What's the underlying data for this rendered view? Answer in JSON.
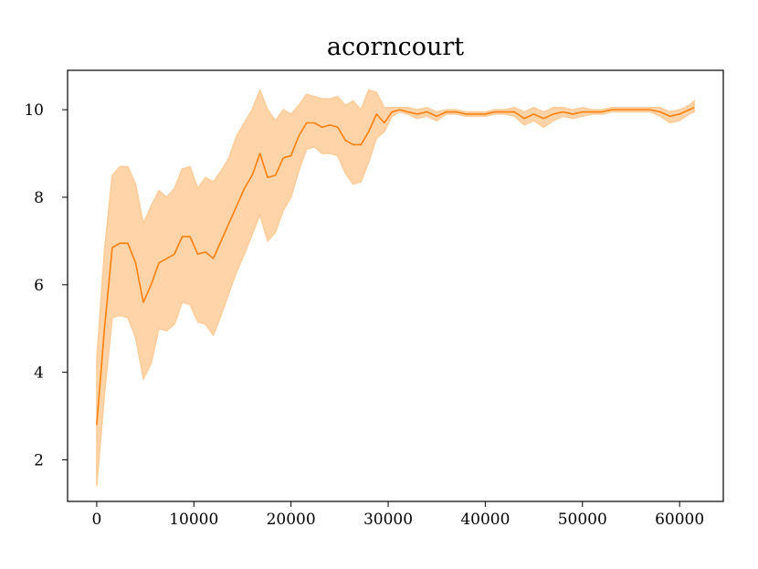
{
  "chart_data": {
    "type": "line",
    "title": "acorncourt",
    "xlabel": "",
    "ylabel": "",
    "xlim": [
      -3000,
      64500
    ],
    "ylim": [
      1.05,
      10.9
    ],
    "xticks": [
      0,
      10000,
      20000,
      30000,
      40000,
      50000,
      60000
    ],
    "yticks": [
      2,
      4,
      6,
      8,
      10
    ],
    "grid": false,
    "legend": "none",
    "colors": {
      "line": "#ff7f0e",
      "band": "#ffcc99"
    },
    "series": [
      {
        "x": [
          0,
          800,
          1600,
          2400,
          3200,
          4000,
          4800,
          5600,
          6400,
          7200,
          8000,
          8800,
          9600,
          10400,
          11200,
          12000,
          12800,
          13600,
          14400,
          15200,
          16000,
          16800,
          17600,
          18400,
          19200,
          20000,
          20800,
          21600,
          22400,
          23200,
          24000,
          24800,
          25600,
          26400,
          27200,
          28000,
          28800,
          29600,
          30400,
          31200,
          32000,
          33000,
          34000,
          35000,
          36000,
          37000,
          38000,
          39000,
          40000,
          41000,
          42000,
          43000,
          44000,
          45000,
          46000,
          47000,
          48000,
          49000,
          50000,
          51000,
          52000,
          53000,
          54000,
          55000,
          56000,
          57000,
          58000,
          59000,
          60000,
          61000,
          61500
        ],
        "mean": [
          2.8,
          5.0,
          6.85,
          6.95,
          6.95,
          6.5,
          5.6,
          6.0,
          6.5,
          6.6,
          6.7,
          7.1,
          7.1,
          6.7,
          6.75,
          6.6,
          7.0,
          7.4,
          7.8,
          8.2,
          8.5,
          9.0,
          8.45,
          8.5,
          8.9,
          8.95,
          9.4,
          9.7,
          9.7,
          9.6,
          9.65,
          9.6,
          9.3,
          9.2,
          9.2,
          9.5,
          9.9,
          9.7,
          9.95,
          10.0,
          9.95,
          9.9,
          9.95,
          9.85,
          9.95,
          9.95,
          9.9,
          9.9,
          9.9,
          9.95,
          9.95,
          9.95,
          9.8,
          9.9,
          9.8,
          9.9,
          9.95,
          9.9,
          9.95,
          9.95,
          9.95,
          10.0,
          10.0,
          10.0,
          10.0,
          10.0,
          9.95,
          9.85,
          9.9,
          10.0,
          10.05
        ],
        "upper": [
          4.3,
          6.8,
          8.5,
          8.7,
          8.7,
          8.3,
          7.4,
          7.8,
          8.15,
          8.0,
          8.2,
          8.65,
          8.7,
          8.2,
          8.45,
          8.35,
          8.6,
          8.9,
          9.4,
          9.7,
          10.0,
          10.45,
          10.0,
          9.75,
          10.0,
          9.9,
          10.1,
          10.35,
          10.3,
          10.25,
          10.25,
          10.3,
          10.1,
          10.2,
          10.0,
          10.45,
          10.4,
          10.05,
          10.05,
          10.05,
          10.05,
          10.0,
          10.05,
          9.95,
          10.0,
          10.0,
          9.95,
          9.95,
          9.95,
          10.0,
          10.0,
          10.05,
          9.95,
          10.05,
          9.95,
          10.05,
          10.05,
          10.0,
          10.05,
          10.0,
          10.0,
          10.05,
          10.05,
          10.05,
          10.05,
          10.05,
          10.05,
          9.95,
          10.0,
          10.1,
          10.2
        ],
        "lower": [
          1.4,
          3.5,
          5.25,
          5.3,
          5.25,
          4.8,
          3.85,
          4.2,
          5.0,
          4.95,
          5.1,
          5.6,
          5.55,
          5.15,
          5.1,
          4.85,
          5.3,
          5.8,
          6.3,
          6.7,
          7.15,
          7.6,
          7.0,
          7.2,
          7.7,
          8.0,
          8.6,
          9.1,
          9.15,
          9.0,
          9.0,
          8.95,
          8.55,
          8.3,
          8.35,
          8.8,
          9.35,
          9.5,
          9.85,
          9.95,
          9.9,
          9.8,
          9.85,
          9.75,
          9.9,
          9.9,
          9.85,
          9.85,
          9.85,
          9.9,
          9.9,
          9.85,
          9.65,
          9.75,
          9.6,
          9.75,
          9.85,
          9.8,
          9.85,
          9.9,
          9.9,
          9.95,
          9.95,
          9.95,
          9.95,
          9.95,
          9.85,
          9.7,
          9.75,
          9.9,
          9.95
        ]
      }
    ]
  }
}
